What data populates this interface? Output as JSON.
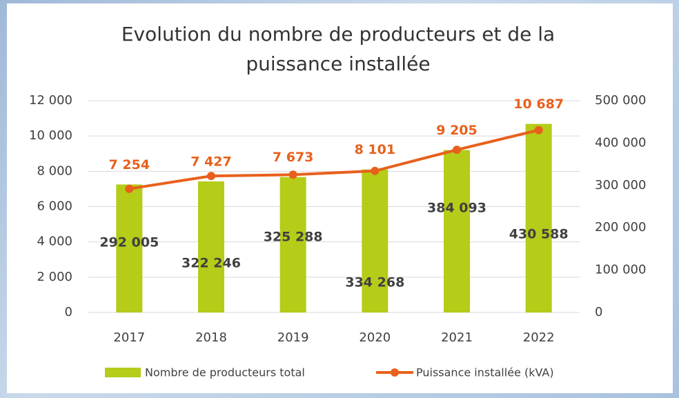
{
  "chart_data": {
    "type": "bar-line",
    "title": "Evolution du nombre de producteurs et de la puissance installée",
    "categories": [
      "2017",
      "2018",
      "2019",
      "2020",
      "2021",
      "2022"
    ],
    "series": [
      {
        "name": "Nombre de producteurs total",
        "type": "bar",
        "color": "#b5cc18",
        "values": [
          7254,
          7427,
          7673,
          8101,
          9205,
          10687
        ],
        "value_labels": [
          "7 254",
          "7 427",
          "7 673",
          "8 101",
          "9 205",
          "10 687"
        ],
        "label_color": "#e8601c"
      },
      {
        "name": "Puissance installée (kVA)",
        "type": "line",
        "axis": "y2",
        "color": "#e8601c",
        "values": [
          292005,
          322246,
          325288,
          334268,
          384093,
          430588
        ],
        "value_labels": [
          "292 005",
          "322 246",
          "325 288",
          "334 268",
          "384 093",
          "430 588"
        ],
        "label_color": "#404040"
      }
    ],
    "ylim": [
      0,
      12000
    ],
    "yticks": [
      0,
      {
        "value": 2000,
        "label": "2 000"
      },
      {
        "value": 4000,
        "label": "4 000"
      },
      {
        "value": 6000,
        "label": "6 000"
      },
      {
        "value": 8000,
        "label": "8 000"
      },
      {
        "value": 10000,
        "label": "10 000"
      },
      {
        "value": 12000,
        "label": "12 000"
      }
    ],
    "y2lim": [
      0,
      500000
    ],
    "y2ticks": [
      0,
      {
        "value": 100000,
        "label": "100 000"
      },
      {
        "value": 200000,
        "label": "200 000"
      },
      {
        "value": 300000,
        "label": "300 000"
      },
      {
        "value": 400000,
        "label": "400 000"
      },
      {
        "value": 500000,
        "label": "500 000"
      }
    ],
    "grid": true,
    "legend": "bottom"
  }
}
